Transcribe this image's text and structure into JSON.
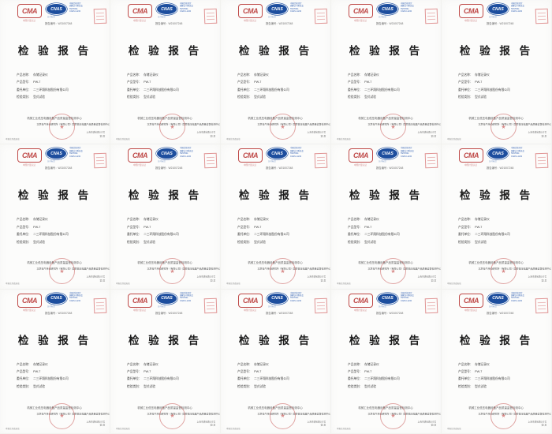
{
  "grid": {
    "rows": 3,
    "cols": 5,
    "tile_count": 15
  },
  "colors": {
    "cma_red": "#bf4a48",
    "cnas_blue": "#1d4e9e",
    "stamp_red": "#c5504e",
    "paper": "#fcfcfb"
  },
  "tile": {
    "cma_logo": {
      "text": "CMA",
      "subtext": "中国计量认证"
    },
    "cnas_logo": {
      "text": "CNAS",
      "lines": [
        "中国合格评定",
        "国家认可委员会",
        "TESTING",
        "CNAS L1234"
      ],
      "subtext": "认可标识"
    },
    "report_no": "报告编号：W21007248",
    "title": "检  验  报  告",
    "fields": [
      {
        "label": "产品名称：",
        "value": "存储记录仪"
      },
      {
        "label": "产品型号：",
        "value": "PW-7"
      },
      {
        "label": "委托单位：",
        "value": "二三环翔科技股份有限公司"
      },
      {
        "label": "检验类别：",
        "value": "型式试验"
      }
    ],
    "org_line1": "机械工业低压电器设备产品质量监督检测中心",
    "org_line2": "北京电气传动研究所（有限公司）国家低压电器产品质量监督检测中心",
    "stamp_star": "★",
    "footer_left": "本报告涂改无效",
    "footer_right1": "上海市漕宝路103号",
    "footer_right2": "第1页"
  }
}
